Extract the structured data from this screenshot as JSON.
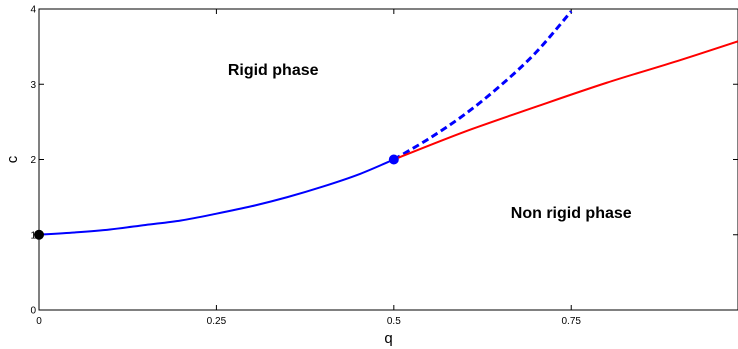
{
  "chart_data": {
    "type": "line",
    "xlabel": "q",
    "ylabel": "c",
    "xlim": [
      0,
      0.985
    ],
    "ylim": [
      0,
      4
    ],
    "x_ticks": [
      0,
      0.25,
      0.5,
      0.75
    ],
    "x_tick_labels": [
      "0",
      "0.25",
      "0.5",
      "0.75"
    ],
    "y_ticks": [
      0,
      1,
      2,
      3,
      4
    ],
    "y_tick_labels": [
      "0",
      "1",
      "2",
      "3",
      "4"
    ],
    "grid": false,
    "legend": "none",
    "series": [
      {
        "style": "solid",
        "color": "#0000ff",
        "x": [
          0,
          0.05,
          0.1,
          0.15,
          0.2,
          0.25,
          0.3,
          0.35,
          0.4,
          0.45,
          0.5
        ],
        "y": [
          1.0,
          1.03,
          1.07,
          1.13,
          1.19,
          1.28,
          1.38,
          1.5,
          1.64,
          1.8,
          2.0
        ]
      },
      {
        "style": "dashed",
        "color": "#0000ff",
        "x": [
          0.5,
          0.55,
          0.6,
          0.65,
          0.7,
          0.75
        ],
        "y": [
          2.0,
          2.28,
          2.6,
          2.98,
          3.42,
          3.97
        ]
      },
      {
        "style": "solid",
        "color": "#ff0000",
        "x": [
          0.5,
          0.6,
          0.7,
          0.8,
          0.9,
          0.985
        ],
        "y": [
          2.0,
          2.37,
          2.7,
          3.02,
          3.31,
          3.57
        ]
      }
    ],
    "points": [
      {
        "x": 0,
        "y": 1,
        "color": "#000000"
      },
      {
        "x": 0.5,
        "y": 2,
        "color": "#0000ff"
      }
    ],
    "annotations": [
      {
        "text": "Rigid phase",
        "x": 0.33,
        "y": 3.12
      },
      {
        "text": "Non rigid phase",
        "x": 0.75,
        "y": 1.22
      }
    ]
  }
}
